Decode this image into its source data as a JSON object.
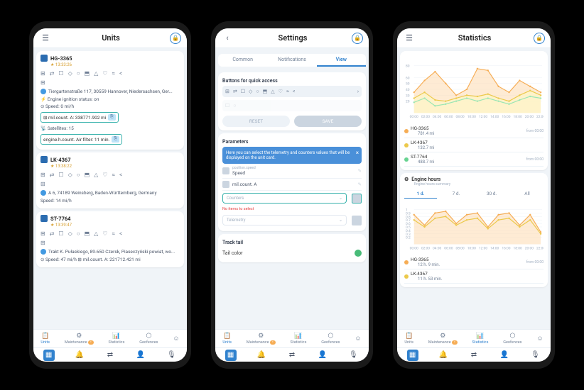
{
  "phone1": {
    "title": "Units",
    "units": [
      {
        "name": "HG-3365",
        "time": "★ 13:33:26",
        "loc": "Tiergartenstraße 117, 30559 Hannover, Niedersachsen, Ger...",
        "ign": "Engine ignition status: on",
        "speed": "Speed: 0 mi/h",
        "mil": "mil.count. A: 338771.902 mi",
        "sat": "Satellites: 15",
        "air": "engine.h.count. Air filter: 11 min."
      },
      {
        "name": "LK-4367",
        "time": "★ 13:38:22",
        "loc": "A 6, 74189 Weinsberg, Baden-Württemberg, Germany",
        "speed": "Speed: 14 mi/h"
      },
      {
        "name": "ST-7764",
        "time": "★ 13:39:47",
        "loc": "Trakt K. Pułaskiego, 89-650 Czersk, Piaseczyński powiat, wo...",
        "speed": "Speed: 47 mi/h",
        "mil": "mil.count. A: 221712.421 mi"
      }
    ],
    "tabs": [
      {
        "l": "Units",
        "a": true
      },
      {
        "l": "Maintenance"
      },
      {
        "l": "Statistics"
      },
      {
        "l": "Geofences"
      }
    ]
  },
  "phone2": {
    "title": "Settings",
    "segs": [
      "Common",
      "Notifications",
      "View"
    ],
    "seg_active": 2,
    "section1": "Buttons for quick access",
    "reset": "RESET",
    "save": "SAVE",
    "section2": "Parameters",
    "hint": "Here you can select the telemetry and counters values that will be displayed on the unit card.",
    "params": [
      {
        "sub": "position.speed",
        "name": "Speed"
      },
      {
        "sub": "",
        "name": "mil.count. A"
      }
    ],
    "sel1": "Counters",
    "noitems": "No items to select",
    "sel2": "Telemetry",
    "section3": "Track tail",
    "tail": "Tail color",
    "tabs": [
      {
        "l": "Units",
        "a": true
      },
      {
        "l": "Maintenance"
      },
      {
        "l": "Statistics"
      },
      {
        "l": "Geofences"
      }
    ]
  },
  "phone3": {
    "title": "Statistics",
    "chart1": {
      "ymax": 80,
      "yticks": [
        80,
        60,
        50,
        40,
        30,
        20
      ],
      "series": [
        {
          "color": "#f6ad55",
          "fill": "#fed7aa",
          "pts": [
            35,
            55,
            70,
            50,
            30,
            40,
            75,
            72,
            45,
            35,
            55,
            45,
            35
          ]
        },
        {
          "color": "#ecc94b",
          "fill": "#fefcbf",
          "pts": [
            25,
            35,
            22,
            20,
            25,
            30,
            28,
            32,
            25,
            20,
            30,
            38,
            30
          ]
        },
        {
          "color": "#9ae6b4",
          "fill": "none",
          "pts": [
            18,
            25,
            12,
            15,
            20,
            25,
            20,
            25,
            20,
            15,
            22,
            28,
            25
          ]
        }
      ],
      "xlabels": [
        "00:00",
        "02:00",
        "04:00",
        "06:00",
        "08:00",
        "10:00",
        "12:00",
        "14:00",
        "16:00",
        "18:00",
        "20:00",
        "22:00"
      ]
    },
    "legend1": [
      {
        "c": "#f6ad55",
        "name": "HG-3365",
        "val": "781.4 mi",
        "from": "from 00:00"
      },
      {
        "c": "#ecc94b",
        "name": "LK-4367",
        "val": "132.7 mi",
        "from": ""
      },
      {
        "c": "#68d391",
        "name": "ST-7764",
        "val": "488.7 mi",
        "from": "from 00:00"
      }
    ],
    "eh_title": "Engine hours",
    "eh_sub": "Engine hours summary",
    "ranges": [
      "1 d.",
      "7 d.",
      "30 d.",
      "All"
    ],
    "range_active": 0,
    "chart2": {
      "ymax": 1.0,
      "yticks": [
        1.0,
        0.9,
        0.8,
        0.7,
        0.6,
        0.5,
        0.4,
        0.3,
        0.2
      ],
      "series": [
        {
          "color": "#f6ad55",
          "fill": "#fed7aa",
          "pts": [
            0.85,
            0.55,
            0.9,
            0.95,
            0.6,
            0.85,
            0.9,
            0.5,
            0.85,
            0.9,
            0.55,
            0.85,
            0.35
          ]
        },
        {
          "color": "#ecc94b",
          "fill": "none",
          "pts": [
            0.7,
            0.5,
            0.75,
            0.8,
            0.55,
            0.7,
            0.75,
            0.45,
            0.7,
            0.75,
            0.5,
            0.7,
            0.3
          ]
        }
      ],
      "xlabels": [
        "00:00",
        "02:00",
        "04:00",
        "06:00",
        "08:00",
        "10:00",
        "12:00",
        "14:00",
        "16:00",
        "18:00",
        "20:00",
        "22:00"
      ]
    },
    "legend2": [
      {
        "c": "#f6ad55",
        "name": "HG-3365",
        "val": "12 h. 9 min.",
        "from": "from 00:00"
      },
      {
        "c": "#ecc94b",
        "name": "LK-4367",
        "val": "11 h. 53 min.",
        "from": ""
      }
    ],
    "tabs": [
      {
        "l": "Units"
      },
      {
        "l": "Maintenance"
      },
      {
        "l": "Statistics",
        "a": true
      },
      {
        "l": "Geofences"
      }
    ]
  },
  "toolbar_icons": [
    "⊞",
    "⇄",
    "☐",
    "◇",
    "○",
    "⬒",
    "△",
    "♡",
    "≈",
    "<"
  ]
}
